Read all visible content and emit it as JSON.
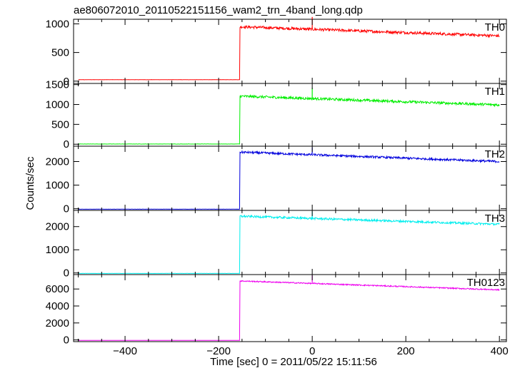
{
  "chart_data": {
    "type": "line",
    "title": "ae806072010_20110522151156_wam2_trn_4band_long.qdp",
    "xlabel": "Time [sec] 0 = 2011/05/22 15:11:56",
    "ylabel": "Counts/sec",
    "xlim": [
      -510,
      415
    ],
    "xticks": [
      -400,
      -200,
      0,
      200,
      400
    ],
    "grid": false,
    "panels": [
      {
        "name": "TH0",
        "color": "#ff0000",
        "ylim": [
          -40,
          1080
        ],
        "yticks": [
          0,
          500,
          1000
        ],
        "yticklabels": [
          "0",
          "500",
          "1000"
        ],
        "baseline": 25,
        "onset_time": -155,
        "onset_level": 950,
        "end_level": 790,
        "noise": 24,
        "spike_time": 0,
        "spike_level": 1120
      },
      {
        "name": "TH1",
        "color": "#00ee00",
        "ylim": [
          -50,
          1530
        ],
        "yticks": [
          0,
          500,
          1000,
          1500
        ],
        "yticklabels": [
          "0",
          "500",
          "1000",
          "1500"
        ],
        "baseline": 5,
        "onset_time": -155,
        "onset_level": 1210,
        "end_level": 990,
        "noise": 32,
        "spike_time": 0,
        "spike_level": 1420
      },
      {
        "name": "TH2",
        "color": "#0000dd",
        "ylim": [
          -70,
          2650
        ],
        "yticks": [
          0,
          1000,
          2000
        ],
        "yticklabels": [
          "0",
          "1000",
          "2000"
        ],
        "baseline": -20,
        "onset_time": -155,
        "onset_level": 2400,
        "end_level": 2000,
        "noise": 45,
        "spike_time": 0,
        "spike_level": 2600
      },
      {
        "name": "TH3",
        "color": "#00eeee",
        "ylim": [
          -70,
          2700
        ],
        "yticks": [
          0,
          1000,
          2000
        ],
        "yticklabels": [
          "0",
          "1000",
          "2000"
        ],
        "baseline": -20,
        "onset_time": -155,
        "onset_level": 2450,
        "end_level": 2100,
        "noise": 45,
        "spike_time": 0,
        "spike_level": 2650
      },
      {
        "name": "TH0123",
        "color": "#ee00ee",
        "ylim": [
          -200,
          7700
        ],
        "yticks": [
          0,
          2000,
          4000,
          6000
        ],
        "yticklabels": [
          "0",
          "2000",
          "4000",
          "6000"
        ],
        "baseline": -50,
        "onset_time": -155,
        "onset_level": 6950,
        "end_level": 5900,
        "noise": 70,
        "spike_time": 0,
        "spike_level": 7600
      }
    ]
  }
}
